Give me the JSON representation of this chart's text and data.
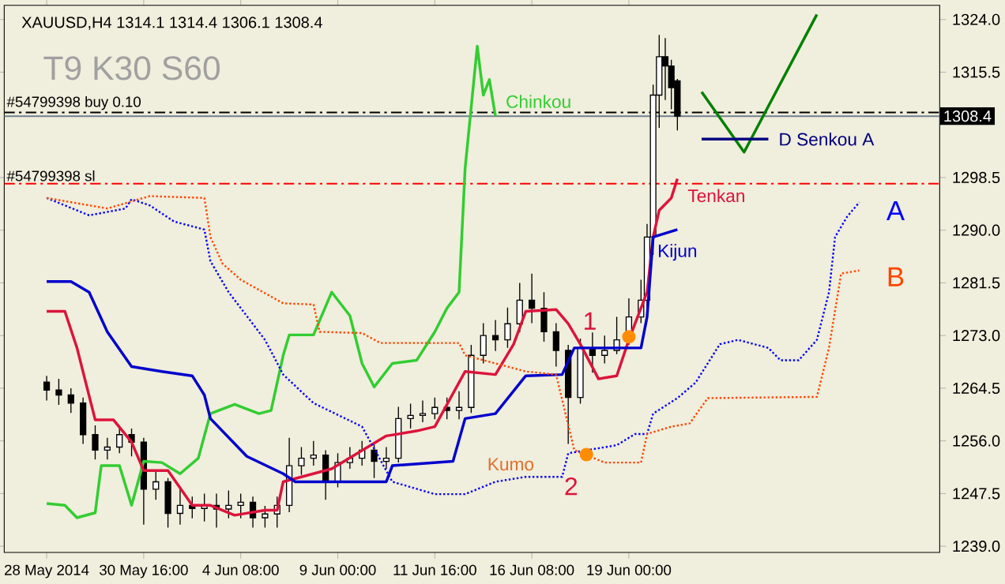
{
  "chart_data": {
    "type": "candlestick",
    "title": "XAUUSD,H4 1314.1 1314.4 1306.1 1308.4",
    "categories": [
      "28 May 2014",
      null,
      null,
      null,
      null,
      null,
      null,
      null,
      null,
      null,
      null,
      null,
      null,
      null,
      null,
      null,
      "30 May 16:00",
      null,
      null,
      null,
      null,
      null,
      null,
      null,
      null,
      null,
      null,
      null,
      null,
      null,
      null,
      null,
      "4 Jun 08:00",
      null,
      null,
      null,
      null,
      null,
      null,
      null,
      null,
      null,
      null,
      null,
      null,
      null,
      null,
      null,
      "9 Jun 00:00",
      null,
      null,
      null,
      null,
      null,
      null,
      null,
      null,
      null,
      null,
      null,
      null,
      null,
      null,
      null,
      "11 Jun 16:00",
      null,
      null,
      null,
      null,
      null,
      null,
      null,
      null,
      null,
      null,
      null,
      null,
      null,
      null,
      null,
      "16 Jun 08:00",
      null,
      null,
      null,
      null,
      null,
      null,
      null,
      null,
      null,
      null,
      null,
      null,
      null,
      null,
      null,
      "19 Jun 00:00",
      null,
      null,
      null,
      null,
      null,
      null,
      null,
      null,
      null,
      null,
      null,
      null,
      null,
      null,
      null,
      null,
      null,
      null,
      null,
      null,
      null,
      null,
      null,
      null,
      null,
      null,
      null,
      null,
      null,
      null,
      null,
      null,
      null,
      null,
      null,
      null,
      null,
      null,
      null,
      null,
      null,
      null,
      null,
      null,
      null,
      null,
      null,
      null,
      null,
      null,
      null
    ],
    "ohlc": [
      [
        1265.5,
        1266.5,
        1262.5,
        1264.2
      ],
      null,
      [
        1264.2,
        1266.0,
        1261.8,
        1263.4
      ],
      null,
      [
        1263.4,
        1264.5,
        1260.5,
        1262.1
      ],
      null,
      [
        1262.1,
        1263.0,
        1255.5,
        1257.0
      ],
      null,
      [
        1257.0,
        1258.5,
        1253.0,
        1254.5
      ],
      null,
      [
        1254.5,
        1256.5,
        1253.0,
        1255.0
      ],
      null,
      [
        1255.0,
        1258.5,
        1254.0,
        1257.0
      ],
      null,
      [
        1257.0,
        1258.0,
        1253.5,
        1255.8
      ],
      null,
      [
        1255.8,
        1256.5,
        1242.5,
        1248.2
      ],
      null,
      [
        1248.2,
        1251.0,
        1246.5,
        1249.4
      ],
      null,
      [
        1249.4,
        1250.0,
        1242.0,
        1244.3
      ],
      null,
      [
        1244.3,
        1248.5,
        1242.5,
        1245.6
      ],
      null,
      [
        1245.6,
        1247.0,
        1243.5,
        1245.1
      ],
      null,
      [
        1245.1,
        1247.5,
        1243.0,
        1245.6
      ],
      null,
      [
        1245.6,
        1247.5,
        1242.0,
        1245.0
      ],
      null,
      [
        1245.0,
        1248.0,
        1243.5,
        1245.6
      ],
      null,
      [
        1245.6,
        1247.5,
        1243.5,
        1246.1
      ],
      null,
      [
        1246.1,
        1247.0,
        1242.0,
        1243.6
      ],
      null,
      [
        1243.6,
        1245.5,
        1242.0,
        1244.2
      ],
      null,
      [
        1244.2,
        1247.0,
        1242.0,
        1245.6
      ],
      null,
      [
        1245.6,
        1256.5,
        1244.5,
        1252.0
      ],
      null,
      [
        1252.0,
        1255.0,
        1250.5,
        1253.2
      ],
      null,
      [
        1253.2,
        1256.0,
        1252.0,
        1253.7
      ],
      null,
      [
        1253.7,
        1254.5,
        1246.5,
        1249.4
      ],
      null,
      [
        1249.4,
        1254.0,
        1248.5,
        1252.5
      ],
      null,
      [
        1252.5,
        1255.0,
        1251.5,
        1253.2
      ],
      null,
      [
        1253.2,
        1256.0,
        1252.0,
        1254.5
      ],
      null,
      [
        1254.5,
        1255.5,
        1250.0,
        1252.7
      ],
      null,
      [
        1252.7,
        1255.0,
        1251.5,
        1253.2
      ],
      null,
      [
        1253.2,
        1261.5,
        1252.5,
        1259.6
      ],
      null,
      [
        1259.6,
        1262.0,
        1258.0,
        1260.1
      ],
      null,
      [
        1260.1,
        1262.5,
        1259.0,
        1260.4
      ],
      null,
      [
        1260.4,
        1263.0,
        1259.5,
        1261.4
      ],
      null,
      [
        1261.4,
        1263.0,
        1259.5,
        1260.9
      ],
      null,
      [
        1260.9,
        1264.0,
        1259.5,
        1261.4
      ],
      null,
      [
        1261.4,
        1271.5,
        1260.5,
        1269.8
      ],
      null,
      [
        1269.8,
        1275.0,
        1268.5,
        1273.0
      ],
      null,
      [
        1273.0,
        1275.5,
        1270.5,
        1272.3
      ],
      null,
      [
        1272.3,
        1277.5,
        1271.0,
        1274.9
      ],
      null,
      [
        1274.9,
        1281.5,
        1273.5,
        1278.7
      ],
      null,
      [
        1278.7,
        1283.0,
        1275.0,
        1277.4
      ],
      null,
      [
        1277.4,
        1280.0,
        1272.0,
        1273.6
      ],
      null,
      [
        1273.6,
        1275.0,
        1268.0,
        1270.6
      ],
      null,
      [
        1270.6,
        1271.5,
        1255.5,
        1263.0
      ],
      null,
      [
        1263.0,
        1272.5,
        1262.0,
        1271.0
      ],
      null,
      [
        1271.0,
        1273.5,
        1267.0,
        1269.8
      ],
      null,
      [
        1269.8,
        1273.0,
        1268.5,
        1270.6
      ],
      null,
      [
        1270.6,
        1276.0,
        1270.0,
        1272.3
      ],
      null,
      [
        1272.3,
        1279.0,
        1271.5,
        1276.0
      ],
      null,
      [
        1276.0,
        1282.0,
        1275.0,
        1278.7
      ],
      [
        1278.7,
        1291.0,
        1277.5,
        1288.9
      ],
      [
        1288.9,
        1313.5,
        1286.0,
        1311.8
      ],
      [
        1311.8,
        1321.5,
        1306.5,
        1318.0
      ],
      [
        1318.0,
        1321.0,
        1311.0,
        1316.5
      ],
      [
        1316.5,
        1317.5,
        1309.5,
        1313.0
      ],
      [
        1314.1,
        1314.4,
        1306.1,
        1308.4
      ],
      null,
      null,
      null,
      null,
      null,
      null,
      null,
      null,
      null,
      null,
      null,
      null,
      null,
      null,
      null,
      null,
      null,
      null,
      null,
      null,
      null,
      null,
      null,
      null,
      null,
      null,
      null,
      null,
      null,
      null,
      null,
      null,
      null,
      null,
      null,
      null,
      null,
      null,
      null,
      null,
      null,
      null,
      null
    ],
    "series": [
      {
        "name": "Chinkou",
        "type": "line",
        "color": "#32cd32",
        "line_style": "solid",
        "values": [
          1245.9,
          null,
          null,
          1245.6,
          null,
          1243.6,
          null,
          null,
          1244.4,
          1252,
          null,
          null,
          1252,
          null,
          1245.6,
          null,
          1252.7,
          null,
          null,
          1252.5,
          null,
          null,
          1250.7,
          null,
          null,
          1253.2,
          null,
          1260.4,
          null,
          null,
          null,
          1261.9,
          null,
          null,
          null,
          1260.4,
          null,
          1260.9,
          null,
          1269.8,
          1273.1,
          null,
          null,
          null,
          1273.1,
          null,
          null,
          1280,
          null,
          null,
          1276.2,
          null,
          1268.5,
          null,
          1264.7,
          null,
          null,
          1268.5,
          null,
          null,
          null,
          1269,
          null,
          null,
          1273.6,
          null,
          1277.4,
          null,
          1280,
          1300,
          null,
          1319.7,
          1311.8,
          1314.3,
          1308.4,
          null,
          null,
          null,
          null,
          null,
          null,
          null,
          null,
          null,
          null,
          null,
          null,
          null,
          null,
          null,
          null,
          null,
          null,
          null,
          null,
          null,
          null,
          null,
          null,
          null,
          null,
          null,
          null,
          null,
          null,
          null,
          null,
          null,
          null,
          null,
          null,
          null,
          null,
          null,
          null,
          null,
          null,
          null,
          null,
          null,
          null,
          null,
          null,
          null,
          null,
          null,
          null,
          null,
          null,
          null,
          null,
          null,
          null,
          null,
          null,
          null,
          null,
          null,
          null,
          null,
          null,
          null,
          null,
          null,
          null,
          null,
          null,
          null
        ]
      },
      {
        "name": "Tenkan",
        "type": "line",
        "color": "#dc143c",
        "line_style": "solid",
        "values": [
          1276.9,
          null,
          null,
          1276.9,
          null,
          1271,
          null,
          null,
          1259.4,
          null,
          null,
          1259.4,
          null,
          null,
          1255.8,
          null,
          1251.2,
          null,
          null,
          null,
          1251.2,
          null,
          null,
          null,
          1245.6,
          null,
          null,
          1245.6,
          null,
          null,
          null,
          1244.0,
          null,
          null,
          null,
          null,
          1244.8,
          null,
          1244.8,
          1249.4,
          null,
          null,
          null,
          null,
          null,
          null,
          null,
          1251.5,
          null,
          null,
          null,
          null,
          null,
          null,
          null,
          null,
          1256.8,
          null,
          null,
          null,
          null,
          1257.6,
          null,
          null,
          1258.3,
          null,
          null,
          null,
          null,
          1267.2,
          null,
          null,
          null,
          null,
          1266.7,
          null,
          null,
          1271.6,
          null,
          1276.9,
          null,
          null,
          null,
          null,
          1277.2,
          null,
          1274.9,
          null,
          1271.6,
          null,
          null,
          1266,
          null,
          null,
          1266.5,
          null,
          1272.3,
          null,
          null,
          1280,
          1288.9,
          1293.2,
          null,
          1295.2,
          1298.3,
          null,
          null,
          null,
          null,
          null,
          null,
          null,
          null,
          null,
          null,
          null,
          null,
          null,
          null,
          null,
          null,
          null,
          null,
          null,
          null,
          null,
          null,
          null,
          null,
          null,
          null,
          null,
          null,
          null,
          null,
          null,
          null,
          null,
          null,
          null,
          null,
          null,
          null,
          null,
          null,
          null,
          null,
          null
        ]
      },
      {
        "name": "Kijun",
        "type": "line",
        "color": "#0000cd",
        "line_style": "solid",
        "values": [
          1281.7,
          null,
          null,
          null,
          1281.7,
          null,
          null,
          1280,
          null,
          null,
          1273.6,
          null,
          null,
          null,
          1268,
          null,
          null,
          null,
          null,
          1267.2,
          null,
          null,
          null,
          null,
          1266.5,
          null,
          1263.4,
          1259.6,
          null,
          null,
          null,
          null,
          null,
          1253.5,
          null,
          null,
          null,
          null,
          null,
          1250.7,
          null,
          1249.4,
          null,
          null,
          null,
          null,
          null,
          null,
          null,
          null,
          null,
          null,
          null,
          null,
          null,
          null,
          1249.4,
          1252,
          null,
          null,
          null,
          null,
          null,
          null,
          null,
          null,
          null,
          1252.7,
          null,
          1259.6,
          null,
          null,
          null,
          null,
          1260.4,
          null,
          null,
          null,
          null,
          1266.5,
          null,
          null,
          null,
          null,
          null,
          1266.7,
          null,
          1271,
          null,
          null,
          null,
          null,
          null,
          null,
          null,
          null,
          null,
          null,
          1271,
          1276,
          1288.9,
          null,
          null,
          null,
          1290.1,
          null,
          null,
          null,
          null,
          null,
          null,
          null,
          null,
          null,
          null,
          null,
          null,
          null,
          null,
          null,
          null,
          null,
          null,
          null,
          null,
          null,
          null,
          null,
          null,
          null,
          null,
          null,
          null,
          null,
          null,
          null,
          null,
          null,
          null,
          null,
          null,
          null,
          null,
          null,
          null,
          null,
          null,
          null
        ]
      },
      {
        "name": "A",
        "type": "line",
        "color": "#0000ff",
        "line_style": "dotted",
        "values": [
          1295.2,
          null,
          null,
          null,
          null,
          null,
          null,
          1292.4,
          null,
          null,
          null,
          null,
          null,
          1293.5,
          1295,
          null,
          null,
          1294,
          null,
          null,
          null,
          1291.4,
          null,
          null,
          null,
          null,
          1290.1,
          1285,
          null,
          null,
          1280,
          null,
          null,
          null,
          null,
          null,
          1272.3,
          null,
          null,
          1266.7,
          null,
          null,
          null,
          null,
          1262.1,
          null,
          null,
          null,
          null,
          null,
          null,
          null,
          1258.3,
          null,
          null,
          null,
          null,
          1249.4,
          null,
          null,
          null,
          null,
          null,
          null,
          1247.4,
          null,
          null,
          null,
          null,
          1247.4,
          null,
          null,
          null,
          null,
          1249.4,
          null,
          null,
          null,
          null,
          1250.2,
          null,
          null,
          null,
          null,
          null,
          1250.2,
          1254,
          null,
          null,
          null,
          null,
          null,
          null,
          null,
          1255.3,
          null,
          null,
          1257.1,
          null,
          1257.1,
          1260.4,
          null,
          null,
          null,
          1262.9,
          null,
          null,
          1265.4,
          null,
          1268.5,
          null,
          1271.6,
          null,
          null,
          1272.3,
          null,
          null,
          null,
          null,
          1271,
          null,
          1269,
          null,
          null,
          1269,
          null,
          null,
          1272.3,
          null,
          1280,
          1288.9,
          null,
          1292.2,
          null,
          1294.5,
          null,
          null,
          null,
          null,
          null,
          null,
          null,
          null,
          null,
          null,
          null,
          null,
          null
        ]
      },
      {
        "name": "B",
        "type": "line",
        "color": "#ff4500",
        "line_style": "dotted",
        "values": [
          1295.2,
          null,
          null,
          null,
          null,
          null,
          null,
          null,
          null,
          null,
          1293.5,
          null,
          null,
          null,
          null,
          null,
          null,
          1295.5,
          null,
          null,
          null,
          null,
          null,
          null,
          null,
          null,
          1295.2,
          1288.9,
          null,
          1284.6,
          null,
          null,
          1282,
          null,
          null,
          null,
          null,
          null,
          null,
          1278.2,
          null,
          null,
          null,
          null,
          1278,
          1273.6,
          null,
          null,
          null,
          null,
          null,
          null,
          1273.4,
          null,
          null,
          1271.8,
          null,
          null,
          null,
          null,
          null,
          null,
          null,
          null,
          null,
          null,
          null,
          null,
          1271.8,
          1269.8,
          null,
          null,
          null,
          null,
          null,
          null,
          null,
          null,
          null,
          1267.2,
          null,
          null,
          null,
          null,
          1266.7,
          null,
          null,
          1254.5,
          null,
          null,
          null,
          null,
          1252.5,
          null,
          null,
          null,
          null,
          null,
          1252.5,
          1257.1,
          null,
          null,
          null,
          1258.3,
          null,
          null,
          1258.8,
          null,
          null,
          1262.9,
          null,
          null,
          null,
          null,
          null,
          null,
          null,
          null,
          null,
          null,
          null,
          null,
          null,
          null,
          null,
          null,
          null,
          1263.1,
          null,
          1271,
          null,
          1283,
          null,
          null,
          1283.5,
          null,
          null,
          null,
          null,
          null,
          null,
          null,
          null,
          null,
          null,
          null,
          null,
          null
        ]
      },
      {
        "type": "line",
        "color": "#008000",
        "line_style": "solid",
        "values": [
          null,
          null,
          null,
          null,
          null,
          null,
          null,
          null,
          null,
          null,
          null,
          null,
          null,
          null,
          null,
          null,
          null,
          null,
          null,
          null,
          null,
          null,
          null,
          null,
          null,
          null,
          null,
          null,
          null,
          null,
          null,
          null,
          null,
          null,
          null,
          null,
          null,
          null,
          null,
          null,
          null,
          null,
          null,
          null,
          null,
          null,
          null,
          null,
          null,
          null,
          null,
          null,
          null,
          null,
          null,
          null,
          null,
          null,
          null,
          null,
          null,
          null,
          null,
          null,
          null,
          null,
          null,
          null,
          null,
          null,
          null,
          null,
          null,
          null,
          null,
          null,
          null,
          null,
          null,
          null,
          null,
          null,
          null,
          null,
          null,
          null,
          null,
          null,
          null,
          null,
          null,
          null,
          null,
          null,
          null,
          null,
          null,
          null,
          null,
          null,
          null,
          null,
          null,
          null,
          null,
          null,
          null,
          null,
          1312.3,
          null,
          null,
          null,
          null,
          null,
          null,
          1302.6,
          null,
          null,
          null,
          null,
          null,
          null,
          null,
          null,
          null,
          null,
          null,
          1324.8,
          null,
          null,
          null,
          null,
          null,
          null,
          null,
          null,
          null,
          null,
          null,
          null,
          null,
          null,
          null,
          null,
          null,
          null,
          null,
          null
        ]
      },
      {
        "name": "D Senkou A",
        "type": "line",
        "color": "#000080",
        "line_style": "solid",
        "values": [
          null,
          null,
          null,
          null,
          null,
          null,
          null,
          null,
          null,
          null,
          null,
          null,
          null,
          null,
          null,
          null,
          null,
          null,
          null,
          null,
          null,
          null,
          null,
          null,
          null,
          null,
          null,
          null,
          null,
          null,
          null,
          null,
          null,
          null,
          null,
          null,
          null,
          null,
          null,
          null,
          null,
          null,
          null,
          null,
          null,
          null,
          null,
          null,
          null,
          null,
          null,
          null,
          null,
          null,
          null,
          null,
          null,
          null,
          null,
          null,
          null,
          null,
          null,
          null,
          null,
          null,
          null,
          null,
          null,
          null,
          null,
          null,
          null,
          null,
          null,
          null,
          null,
          null,
          null,
          null,
          null,
          null,
          null,
          null,
          null,
          null,
          null,
          null,
          null,
          null,
          null,
          null,
          null,
          null,
          null,
          null,
          null,
          null,
          null,
          null,
          null,
          null,
          null,
          null,
          null,
          null,
          null,
          null,
          1304.7,
          null,
          null,
          null,
          null,
          null,
          null,
          null,
          null,
          null,
          null,
          1304.7,
          null,
          null,
          null,
          null,
          null,
          null,
          null,
          null,
          null,
          null,
          null,
          null,
          null,
          null,
          null,
          null,
          null,
          null,
          null,
          null,
          null,
          null,
          null,
          null,
          null,
          null,
          null,
          null
        ]
      },
      {
        "type": "scatter",
        "color": "#ff8c00",
        "values": [
          null,
          null,
          null,
          null,
          null,
          null,
          null,
          null,
          null,
          null,
          null,
          null,
          null,
          null,
          null,
          null,
          null,
          null,
          null,
          null,
          null,
          null,
          null,
          null,
          null,
          null,
          null,
          null,
          null,
          null,
          null,
          null,
          null,
          null,
          null,
          null,
          null,
          null,
          null,
          null,
          null,
          null,
          null,
          null,
          null,
          null,
          null,
          null,
          null,
          null,
          null,
          null,
          null,
          null,
          null,
          null,
          null,
          null,
          null,
          null,
          null,
          null,
          null,
          null,
          null,
          null,
          null,
          null,
          null,
          null,
          null,
          null,
          null,
          null,
          null,
          null,
          null,
          null,
          null,
          null,
          null,
          null,
          null,
          null,
          null,
          null,
          null,
          null,
          null,
          1253.8,
          null,
          null,
          null,
          null,
          null,
          null,
          1272.8,
          null,
          null,
          null,
          null,
          null,
          null,
          null,
          null,
          null,
          null,
          null,
          null,
          null,
          null,
          null,
          null,
          null,
          null,
          null,
          null,
          null,
          null,
          null,
          null,
          null,
          null,
          null,
          null,
          null,
          null,
          null,
          null,
          null,
          null,
          null,
          null,
          null,
          null,
          null,
          null,
          null,
          null,
          null,
          null,
          null,
          null,
          null,
          null,
          null,
          null,
          null
        ]
      }
    ],
    "ylim": [
      1238,
      1326.3
    ],
    "yticks": [
      {
        "value": 1239,
        "label": "1239.0"
      },
      {
        "value": 1247.5,
        "label": "1247.5"
      },
      {
        "value": 1256,
        "label": "1256.0"
      },
      {
        "value": 1264.5,
        "label": "1264.5"
      },
      {
        "value": 1273,
        "label": "1273.0"
      },
      {
        "value": 1281.5,
        "label": "1281.5"
      },
      {
        "value": 1290,
        "label": "1290.0"
      },
      {
        "value": 1298.5,
        "label": "1298.5"
      },
      {
        "value": 1315.5,
        "label": "1315.5"
      },
      {
        "value": 1324,
        "label": "1324.0"
      }
    ],
    "ref_lines": [
      {
        "axis": "y",
        "value": 1309.0,
        "label": "#54799398 buy 0.10",
        "color": "#000000",
        "line_style": "dashed"
      },
      {
        "axis": "y",
        "value": 1308.4,
        "label": "1308.4",
        "color": "#708090",
        "line_style": "solid"
      },
      {
        "axis": "y",
        "value": 1297.5,
        "label": "#54799398 sl",
        "color": "#ff0000",
        "line_style": "dashed"
      }
    ],
    "annotations": [
      "T9 K30 S60",
      "Kumo",
      "1",
      "2"
    ],
    "grid": false
  }
}
